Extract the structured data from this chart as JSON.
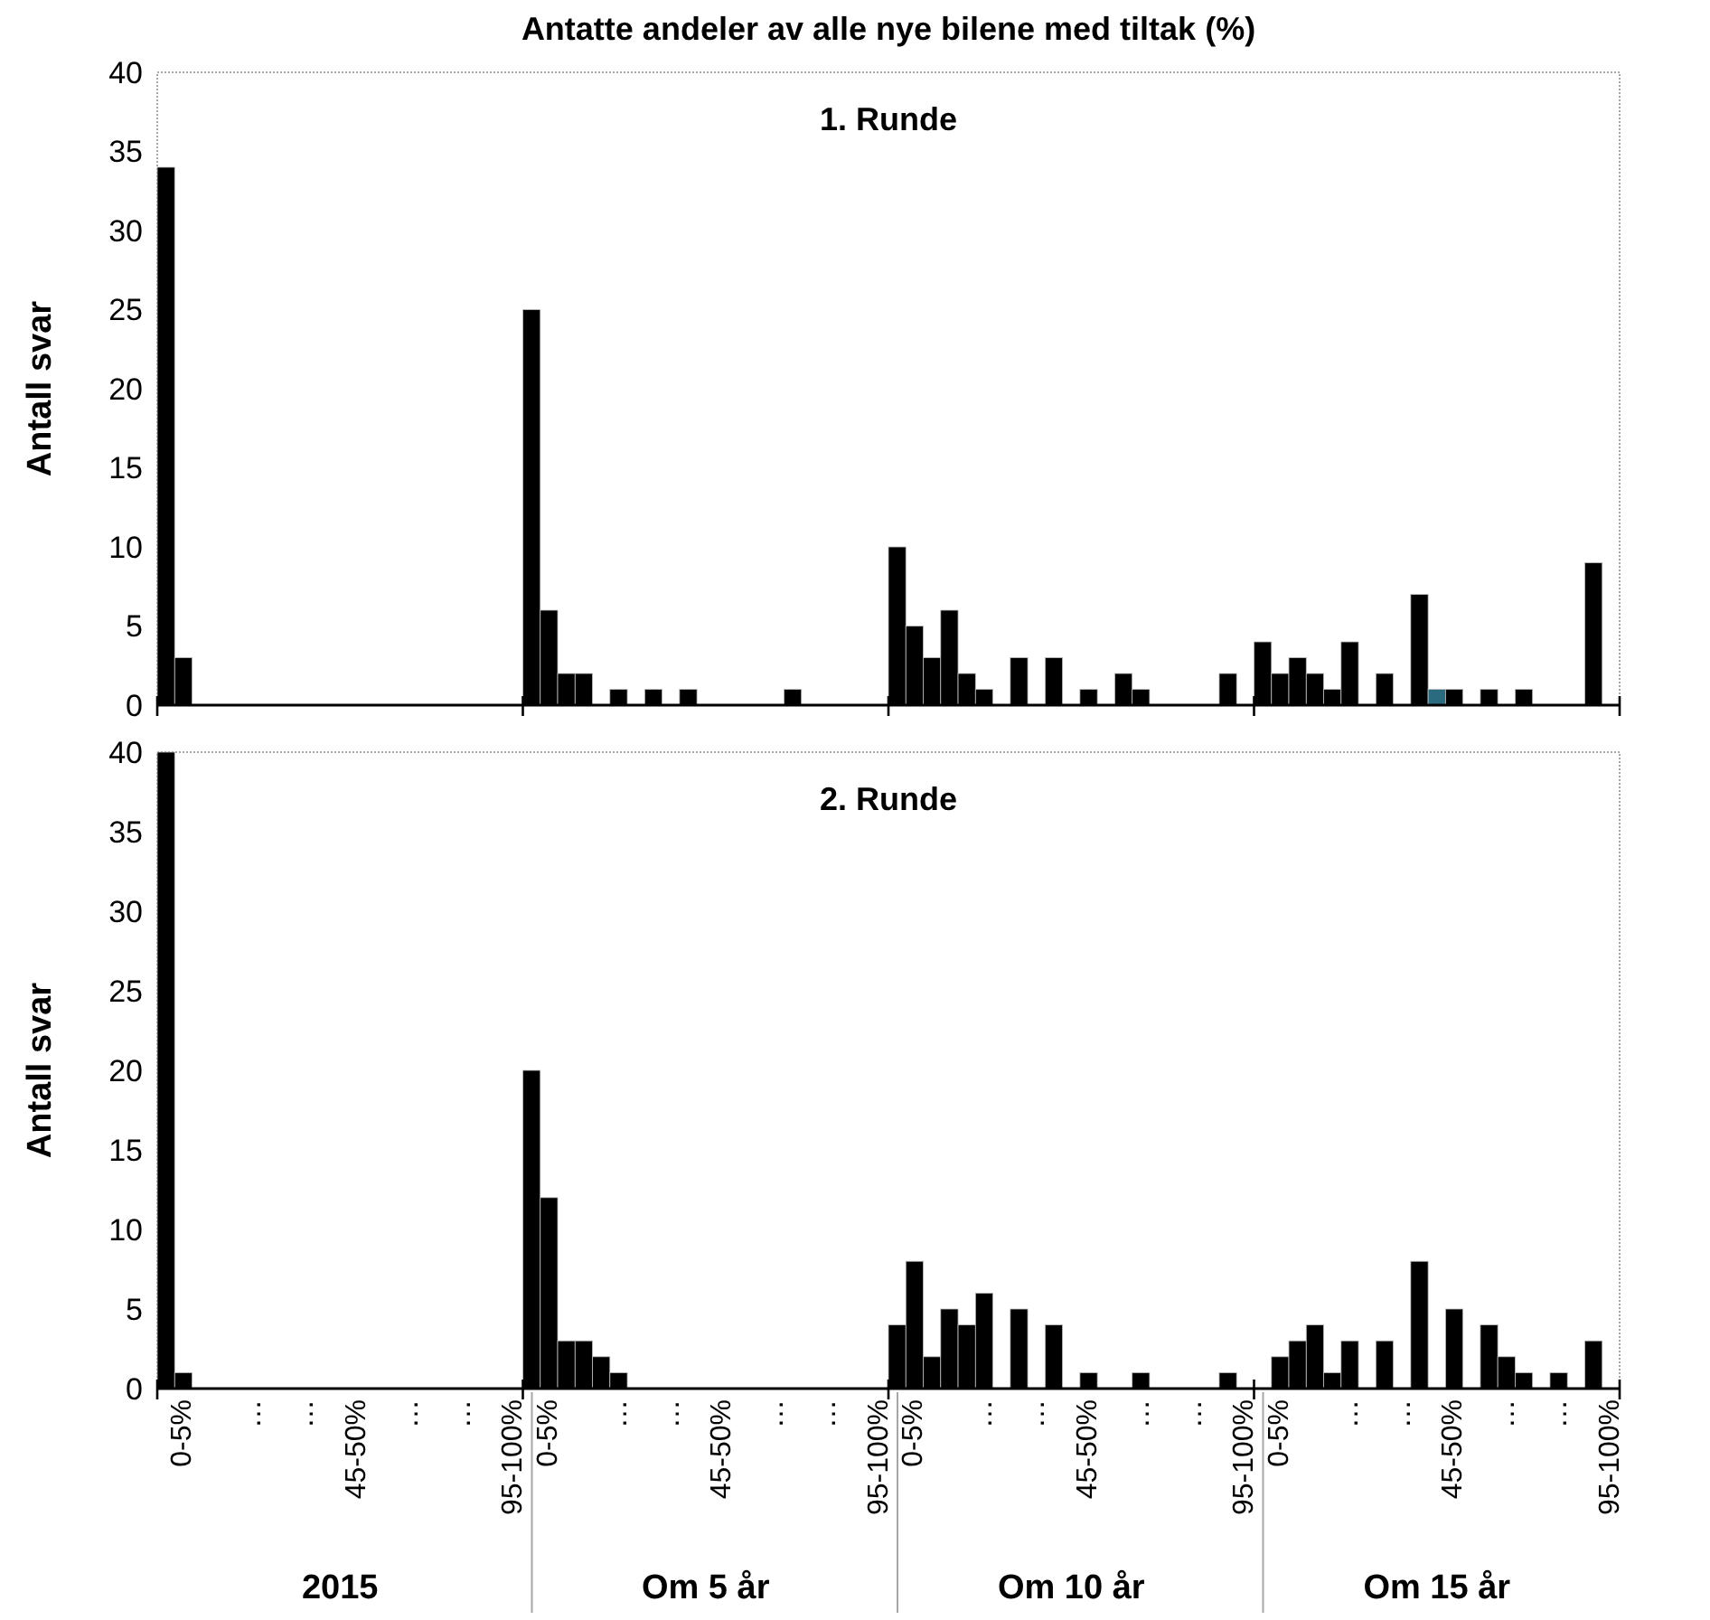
{
  "chart_data": [
    {
      "type": "bar",
      "title": "Antatte andeler av alle nye bilene med tiltak (%)",
      "subtitle": "1. Runde",
      "ylabel": "Antall svar",
      "ylim": [
        0,
        40
      ],
      "yticks": [
        0,
        5,
        10,
        15,
        20,
        25,
        30,
        35,
        40
      ],
      "tick_labels": "y",
      "categories": [
        null,
        null,
        null,
        null,
        null,
        null,
        null,
        null,
        null,
        null,
        null,
        null,
        null,
        null,
        null,
        null,
        null,
        null,
        null,
        null,
        null,
        null,
        null,
        null,
        null,
        null,
        null,
        null,
        null,
        null,
        null,
        null,
        null,
        null,
        null,
        null,
        null,
        null,
        null,
        null,
        null,
        null,
        null,
        null,
        null,
        null,
        null,
        null,
        null,
        null,
        null,
        null,
        null,
        null,
        null,
        null,
        null,
        null,
        null,
        null,
        null,
        null,
        null,
        null,
        null,
        null,
        null,
        null,
        null,
        null,
        null,
        null,
        null,
        null,
        null,
        null,
        null,
        null,
        null,
        null,
        null,
        null,
        null,
        null
      ],
      "values": [
        34,
        3,
        0,
        0,
        0,
        0,
        0,
        0,
        0,
        0,
        0,
        0,
        0,
        0,
        0,
        0,
        0,
        0,
        0,
        0,
        0,
        25,
        6,
        2,
        2,
        0,
        1,
        0,
        1,
        0,
        1,
        0,
        0,
        0,
        0,
        0,
        1,
        0,
        0,
        0,
        0,
        0,
        10,
        5,
        3,
        6,
        2,
        1,
        0,
        3,
        0,
        3,
        0,
        1,
        0,
        2,
        1,
        0,
        0,
        0,
        0,
        2,
        0,
        4,
        2,
        3,
        2,
        1,
        4,
        0,
        2,
        0,
        7,
        1,
        1,
        0,
        1,
        0,
        1,
        0,
        0,
        0,
        9,
        0
      ],
      "colors": [
        "#000000",
        "#000000",
        "#000000",
        "#000000",
        "#000000",
        "#000000",
        "#000000",
        "#000000",
        "#000000",
        "#000000",
        "#000000",
        "#000000",
        "#000000",
        "#000000",
        "#000000",
        "#000000",
        "#000000",
        "#000000",
        "#000000",
        "#000000",
        "#000000",
        "#000000",
        "#000000",
        "#000000",
        "#000000",
        "#000000",
        "#000000",
        "#000000",
        "#000000",
        "#000000",
        "#000000",
        "#000000",
        "#000000",
        "#000000",
        "#000000",
        "#000000",
        "#000000",
        "#000000",
        "#000000",
        "#000000",
        "#000000",
        "#000000",
        "#000000",
        "#000000",
        "#000000",
        "#000000",
        "#000000",
        "#000000",
        "#000000",
        "#000000",
        "#000000",
        "#000000",
        "#000000",
        "#000000",
        "#000000",
        "#000000",
        "#000000",
        "#000000",
        "#000000",
        "#000000",
        "#000000",
        "#000000",
        "#000000",
        "#000000",
        "#000000",
        "#000000",
        "#000000",
        "#000000",
        "#000000",
        "#000000",
        "#000000",
        "#000000",
        "#000000",
        "#2b6b7f",
        "#000000",
        "#000000",
        "#000000",
        "#000000",
        "#000000",
        "#000000",
        "#000000",
        "#000000",
        "#000000",
        "#000000"
      ]
    },
    {
      "type": "bar",
      "subtitle": "2. Runde",
      "ylabel": "Antall svar",
      "ylim": [
        0,
        40
      ],
      "yticks": [
        0,
        5,
        10,
        15,
        20,
        25,
        30,
        35,
        40
      ],
      "categories": [
        null,
        "0-5%",
        null,
        null,
        null,
        "…",
        null,
        null,
        "…",
        null,
        null,
        "45-50%",
        null,
        null,
        "…",
        null,
        null,
        "…",
        null,
        null,
        "95-100%",
        null,
        "0-5%",
        null,
        null,
        null,
        "…",
        null,
        null,
        "…",
        null,
        null,
        "45-50%",
        null,
        null,
        "…",
        null,
        null,
        "…",
        null,
        null,
        "95-100%",
        null,
        "0-5%",
        null,
        null,
        null,
        "…",
        null,
        null,
        "…",
        null,
        null,
        "45-50%",
        null,
        null,
        "…",
        null,
        null,
        "…",
        null,
        null,
        "95-100%",
        null,
        "0-5%",
        null,
        null,
        null,
        "…",
        null,
        null,
        "…",
        null,
        null,
        "45-50%",
        null,
        null,
        "…",
        null,
        null,
        "…",
        null,
        null,
        "95-100%"
      ],
      "values": [
        40,
        1,
        0,
        0,
        0,
        0,
        0,
        0,
        0,
        0,
        0,
        0,
        0,
        0,
        0,
        0,
        0,
        0,
        0,
        0,
        0,
        20,
        12,
        3,
        3,
        2,
        1,
        0,
        0,
        0,
        0,
        0,
        0,
        0,
        0,
        0,
        0,
        0,
        0,
        0,
        0,
        0,
        4,
        8,
        2,
        5,
        4,
        6,
        0,
        5,
        0,
        4,
        0,
        1,
        0,
        0,
        1,
        0,
        0,
        0,
        0,
        1,
        0,
        0,
        2,
        3,
        4,
        1,
        3,
        0,
        3,
        0,
        8,
        0,
        5,
        0,
        4,
        2,
        1,
        0,
        1,
        0,
        3,
        0
      ],
      "color": "#000000",
      "annotations": [
        "2015",
        "Om 5 år",
        "Om 10 år",
        "Om 15 år"
      ]
    }
  ]
}
